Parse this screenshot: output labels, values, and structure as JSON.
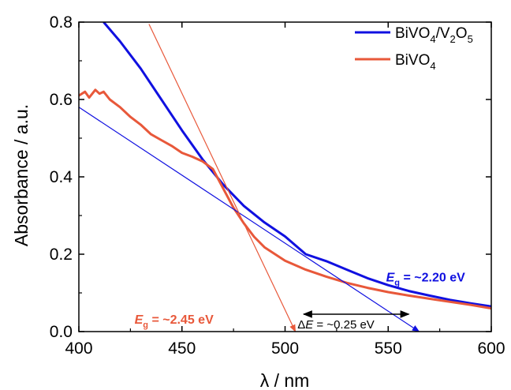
{
  "chart_data": {
    "type": "line",
    "xlabel": "λ / nm",
    "ylabel": "Absorbance / a.u.",
    "xlim": [
      400,
      600
    ],
    "ylim": [
      0,
      0.8
    ],
    "x_ticks": [
      400,
      450,
      500,
      550,
      600
    ],
    "x_tick_labels": [
      "400",
      "450",
      "500",
      "550",
      "600"
    ],
    "y_ticks": [
      0,
      0.2,
      0.4,
      0.6,
      0.8
    ],
    "y_tick_labels": [
      "0.0",
      "0.2",
      "0.4",
      "0.6",
      "0.8"
    ],
    "grid": false,
    "legend_position": "top-right",
    "series": [
      {
        "name": "BiVO4/V2O5",
        "color": "#1010e0",
        "x": [
          412,
          420,
          430,
          440,
          450,
          460,
          470,
          480,
          490,
          500,
          510,
          520,
          530,
          540,
          550,
          560,
          570,
          580,
          590,
          600
        ],
        "y": [
          0.8,
          0.75,
          0.68,
          0.6,
          0.52,
          0.445,
          0.38,
          0.325,
          0.282,
          0.246,
          0.2,
          0.182,
          0.16,
          0.138,
          0.12,
          0.105,
          0.093,
          0.082,
          0.073,
          0.065
        ]
      },
      {
        "name": "BiVO4",
        "color": "#e8583a",
        "x": [
          400,
          403,
          405,
          408,
          410,
          412,
          415,
          420,
          425,
          430,
          435,
          440,
          445,
          450,
          455,
          460,
          465,
          470,
          475,
          480,
          485,
          490,
          500,
          510,
          520,
          530,
          540,
          550,
          560,
          570,
          580,
          590,
          600
        ],
        "y": [
          0.61,
          0.62,
          0.605,
          0.625,
          0.615,
          0.62,
          0.6,
          0.58,
          0.555,
          0.535,
          0.51,
          0.495,
          0.48,
          0.462,
          0.452,
          0.44,
          0.42,
          0.37,
          0.32,
          0.28,
          0.245,
          0.218,
          0.183,
          0.16,
          0.142,
          0.126,
          0.113,
          0.102,
          0.093,
          0.085,
          0.077,
          0.069,
          0.06
        ]
      }
    ],
    "tangent_lines": [
      {
        "series": "BiVO4/V2O5",
        "color": "#1010e0",
        "x": [
          400,
          565
        ],
        "y": [
          0.58,
          0.0
        ]
      },
      {
        "series": "BiVO4",
        "color": "#e8583a",
        "x": [
          434,
          505
        ],
        "y": [
          0.795,
          0.0
        ]
      }
    ],
    "annotations": [
      {
        "symbol": "E",
        "subscript": "g",
        "text": " = ~2.20 eV",
        "color": "#1010e0",
        "x": 549,
        "y": 0.13
      },
      {
        "symbol": "E",
        "subscript": "g",
        "text": " = ~2.45 eV",
        "color": "#e8583a",
        "x": 427,
        "y": 0.02
      },
      {
        "prefix": "Δ",
        "symbol": "E",
        "text": " = ~0.25 eV",
        "color": "#000000",
        "x": 506,
        "y": 0.008
      }
    ],
    "delta_arrow": {
      "x": [
        509,
        560
      ],
      "y": 0.045
    }
  }
}
